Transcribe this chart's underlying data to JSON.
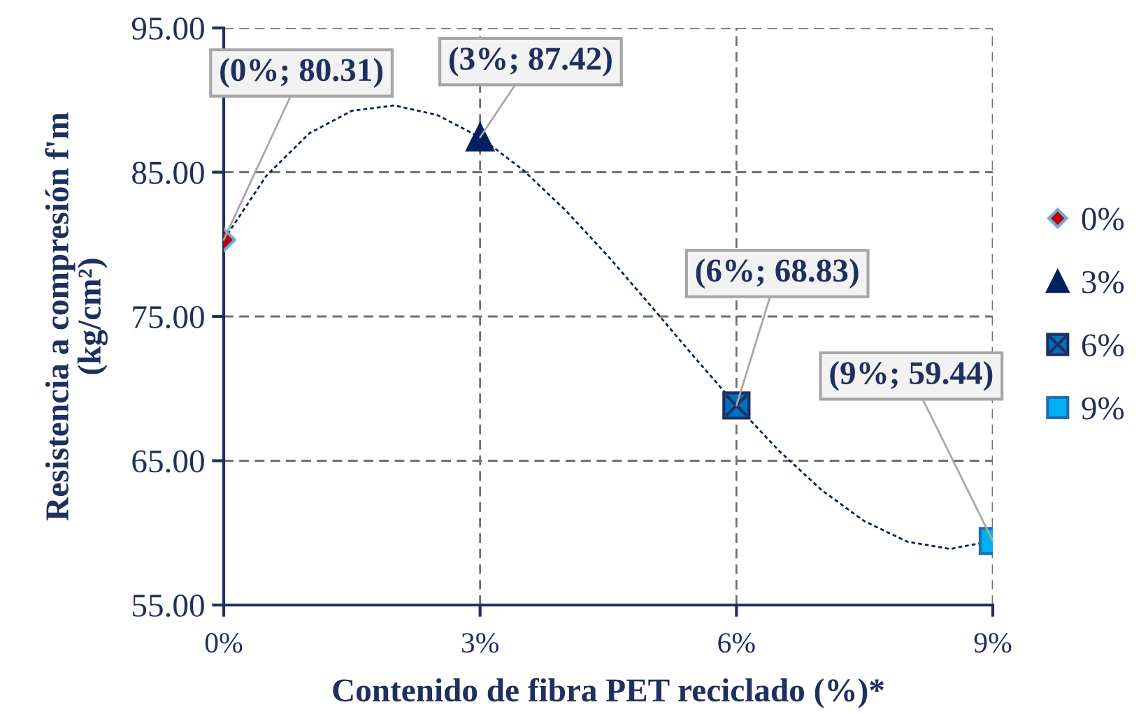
{
  "chart_data": {
    "type": "scatter",
    "xlabel": "Contenido de fibra PET reciclado (%)*",
    "ylabel": "Resistencia a compresión f'm\n(kg/cm²)",
    "xlim": [
      0,
      9
    ],
    "xticks": [
      {
        "value": 0,
        "label": "0%"
      },
      {
        "value": 3,
        "label": "3%"
      },
      {
        "value": 6,
        "label": "6%"
      },
      {
        "value": 9,
        "label": "9%"
      }
    ],
    "ylim": [
      55,
      95
    ],
    "yticks": [
      {
        "value": 55,
        "label": "55.00"
      },
      {
        "value": 65,
        "label": "65.00"
      },
      {
        "value": 75,
        "label": "75.00"
      },
      {
        "value": 85,
        "label": "85.00"
      },
      {
        "value": 95,
        "label": "95.00"
      }
    ],
    "grid": true,
    "legend": "right",
    "series": [
      {
        "name": "0%",
        "color": "#c00000",
        "marker": "diamond",
        "x": [
          0
        ],
        "values": [
          80.31
        ]
      },
      {
        "name": "3%",
        "color": "#002060",
        "marker": "triangle",
        "x": [
          3
        ],
        "values": [
          87.42
        ]
      },
      {
        "name": "6%",
        "color": "#0070c0",
        "marker": "square",
        "x": [
          6
        ],
        "values": [
          68.83
        ]
      },
      {
        "name": "9%",
        "color": "#00b0f0",
        "marker": "square",
        "x": [
          9
        ],
        "values": [
          59.44
        ]
      },
      {
        "type": "line",
        "color": "#002060",
        "line_style": "dotted",
        "marker": "none",
        "x": [
          0,
          0.5,
          1,
          1.5,
          2,
          2.5,
          3,
          3.5,
          4,
          4.5,
          5,
          5.5,
          6,
          6.5,
          7,
          7.5,
          8,
          8.5,
          9
        ],
        "values": [
          80.31,
          84.76,
          87.69,
          89.26,
          89.63,
          88.96,
          87.42,
          85.17,
          82.36,
          79.16,
          75.73,
          72.23,
          68.83,
          65.68,
          62.95,
          60.8,
          59.39,
          58.89,
          59.44
        ]
      }
    ],
    "annotations": [
      {
        "text": "(0%; 80.31)",
        "x": 0,
        "y": 80.31
      },
      {
        "text": "(3%; 87.42)",
        "x": 3,
        "y": 87.42
      },
      {
        "text": "(6%; 68.83)",
        "x": 6,
        "y": 68.83
      },
      {
        "text": "(9%; 59.44)",
        "x": 9,
        "y": 59.44
      }
    ]
  }
}
